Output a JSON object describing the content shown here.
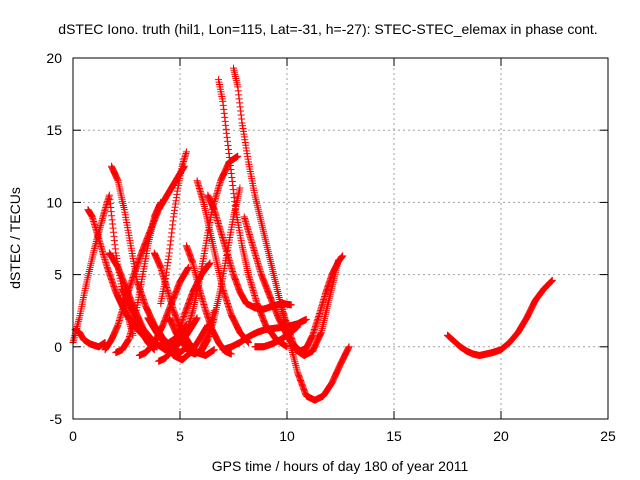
{
  "chart_data": {
    "type": "scatter",
    "title": "dSTEC Iono. truth (hil1, Lon=115, Lat=-31, h=-27): STEC-STEC_elemax in phase cont.",
    "xlabel": "GPS time / hours of day 180 of year 2011",
    "ylabel": "dSTEC  / TECUs",
    "xlim": [
      0,
      25
    ],
    "ylim": [
      -5,
      20
    ],
    "xticks": [
      0,
      5,
      10,
      15,
      20,
      25
    ],
    "yticks": [
      -5,
      0,
      5,
      10,
      15,
      20
    ],
    "grid": true,
    "marker": "+",
    "color": "#ff0000",
    "series": [
      {
        "x": [
          0.0,
          0.3,
          0.6,
          1.0,
          1.4,
          1.7,
          2.0,
          2.4,
          2.8
        ],
        "y": [
          0.3,
          2.0,
          4.2,
          6.8,
          9.0,
          10.5,
          6.5,
          3.0,
          0.8
        ]
      },
      {
        "x": [
          0.1,
          0.3,
          0.5,
          0.8,
          1.2,
          1.5
        ],
        "y": [
          1.2,
          1.0,
          0.5,
          0.2,
          0.0,
          0.3
        ]
      },
      {
        "x": [
          0.7,
          0.9,
          1.2,
          1.6,
          2.0,
          2.5,
          3.0,
          3.4,
          3.8,
          4.2,
          4.8,
          5.3
        ],
        "y": [
          9.5,
          9.0,
          7.5,
          5.5,
          3.8,
          2.2,
          1.2,
          0.6,
          0.2,
          0.0,
          0.6,
          1.5
        ]
      },
      {
        "x": [
          1.8,
          2.1,
          2.4,
          2.7,
          3.0,
          3.4,
          3.8,
          4.2,
          4.6,
          5.0,
          5.5
        ],
        "y": [
          12.5,
          11.5,
          9.5,
          7.0,
          4.5,
          2.8,
          1.5,
          0.6,
          0.0,
          -0.4,
          0.2
        ]
      },
      {
        "x": [
          1.5,
          1.8,
          2.1,
          2.4,
          2.8,
          3.2,
          3.6,
          4.0,
          4.4,
          4.8,
          5.2
        ],
        "y": [
          -0.2,
          0.5,
          1.5,
          3.0,
          4.8,
          6.5,
          8.0,
          9.5,
          10.5,
          11.5,
          12.5
        ]
      },
      {
        "x": [
          1.7,
          2.1,
          2.5,
          2.9,
          3.3,
          3.8,
          4.3,
          4.8,
          5.3,
          5.8
        ],
        "y": [
          6.5,
          5.5,
          4.0,
          2.5,
          1.2,
          0.3,
          -0.2,
          0.0,
          0.8,
          2.0
        ]
      },
      {
        "x": [
          2.0,
          2.3,
          2.6,
          2.9,
          3.2,
          3.5,
          3.8,
          4.1
        ],
        "y": [
          -0.4,
          -0.2,
          0.5,
          2.0,
          4.5,
          7.0,
          9.0,
          10.0
        ]
      },
      {
        "x": [
          2.3,
          2.6,
          2.9,
          3.2,
          3.5,
          3.8
        ],
        "y": [
          4.0,
          3.0,
          2.0,
          1.0,
          0.3,
          -0.2
        ]
      },
      {
        "x": [
          3.1,
          3.4,
          3.8,
          4.2,
          4.6,
          5.0,
          5.4
        ],
        "y": [
          -0.6,
          -0.4,
          0.3,
          1.5,
          3.0,
          4.5,
          5.5
        ]
      },
      {
        "x": [
          3.5,
          3.9,
          4.3,
          4.7,
          5.1,
          5.5,
          5.9,
          6.3
        ],
        "y": [
          2.0,
          1.0,
          0.2,
          -0.6,
          -0.9,
          -0.4,
          0.5,
          1.5
        ]
      },
      {
        "x": [
          3.8,
          4.1,
          4.4,
          4.7,
          5.0,
          5.4,
          5.8,
          6.2,
          6.6
        ],
        "y": [
          6.5,
          5.5,
          4.0,
          2.5,
          1.3,
          0.3,
          -0.4,
          -0.6,
          -0.2
        ]
      },
      {
        "x": [
          4.0,
          4.3,
          4.6,
          4.9,
          5.2,
          5.6,
          6.0,
          6.4
        ],
        "y": [
          -1.0,
          -0.8,
          -0.3,
          0.8,
          2.2,
          3.8,
          5.0,
          5.8
        ]
      },
      {
        "x": [
          4.1,
          4.3,
          4.5,
          4.7,
          4.9,
          5.1,
          5.3
        ],
        "y": [
          3.0,
          4.5,
          6.5,
          9.0,
          11.0,
          12.5,
          13.5
        ]
      },
      {
        "x": [
          4.5,
          4.8,
          5.1,
          5.4,
          5.7,
          6.0,
          6.3,
          6.6
        ],
        "y": [
          2.0,
          1.0,
          0.3,
          -0.3,
          -0.5,
          -0.2,
          0.8,
          2.5
        ]
      },
      {
        "x": [
          5.0,
          5.3,
          5.6,
          5.9,
          6.2,
          6.5,
          6.9,
          7.3,
          7.7
        ],
        "y": [
          0.3,
          1.0,
          2.5,
          4.5,
          7.0,
          9.5,
          11.5,
          12.8,
          13.2
        ]
      },
      {
        "x": [
          5.3,
          5.6,
          5.9,
          6.2,
          6.5,
          6.8,
          7.1,
          7.4
        ],
        "y": [
          7.0,
          5.8,
          4.0,
          2.5,
          1.2,
          0.3,
          -0.3,
          -0.5
        ]
      },
      {
        "x": [
          5.8,
          6.1,
          6.4,
          6.7,
          7.0,
          7.4,
          7.8,
          8.2
        ],
        "y": [
          11.5,
          10.0,
          8.0,
          6.0,
          4.0,
          2.2,
          1.0,
          0.3
        ]
      },
      {
        "x": [
          6.0,
          6.3,
          6.6,
          6.9,
          7.2,
          7.5,
          7.8
        ],
        "y": [
          -0.3,
          0.5,
          2.0,
          4.0,
          6.5,
          9.0,
          11.0
        ]
      },
      {
        "x": [
          6.3,
          6.6,
          6.9,
          7.2,
          7.5,
          7.8,
          8.1,
          8.5,
          8.9,
          9.3,
          9.8,
          10.2
        ],
        "y": [
          10.5,
          9.5,
          8.0,
          6.5,
          5.0,
          3.8,
          3.0,
          2.7,
          2.6,
          2.8,
          3.0,
          2.9
        ]
      },
      {
        "x": [
          6.8,
          7.0,
          7.2,
          7.4,
          7.6,
          7.9,
          8.2,
          8.6,
          9.0,
          9.5,
          10.0
        ],
        "y": [
          18.5,
          17.0,
          14.5,
          12.0,
          9.5,
          7.0,
          5.0,
          3.0,
          1.5,
          0.5,
          0.0
        ]
      },
      {
        "x": [
          7.0,
          7.4,
          7.8,
          8.2,
          8.6,
          9.0,
          9.5,
          10.0,
          10.5,
          10.9
        ],
        "y": [
          -0.2,
          0.0,
          0.3,
          0.7,
          1.0,
          1.2,
          1.3,
          1.4,
          1.6,
          1.9
        ]
      },
      {
        "x": [
          7.5,
          7.7,
          7.9,
          8.2,
          8.5,
          8.9,
          9.3,
          9.7,
          10.1,
          10.5,
          10.9,
          11.3,
          11.7,
          12.1,
          12.5,
          12.9
        ],
        "y": [
          19.3,
          18.0,
          15.5,
          12.8,
          10.5,
          8.0,
          5.5,
          3.0,
          0.5,
          -1.8,
          -3.4,
          -3.7,
          -3.4,
          -2.5,
          -1.2,
          0.0
        ]
      },
      {
        "x": [
          8.0,
          8.4,
          8.8,
          9.2,
          9.6,
          10.0,
          10.4,
          10.8,
          11.2,
          11.6,
          12.0,
          12.4
        ],
        "y": [
          9.0,
          7.0,
          5.0,
          3.5,
          2.0,
          0.8,
          -0.2,
          -0.6,
          -0.3,
          1.0,
          3.5,
          6.0
        ]
      },
      {
        "x": [
          8.5,
          8.9,
          9.3,
          9.7,
          10.1,
          10.5
        ],
        "y": [
          0.0,
          0.0,
          0.2,
          0.5,
          0.9,
          1.4
        ]
      },
      {
        "x": [
          9.7,
          10.0,
          10.3,
          10.6,
          10.9,
          11.2,
          11.5,
          11.8,
          12.1,
          12.4,
          12.6
        ],
        "y": [
          3.0,
          1.5,
          0.2,
          -0.3,
          -0.1,
          0.8,
          2.2,
          3.7,
          5.0,
          5.9,
          6.3
        ]
      },
      {
        "x": [
          17.5,
          17.8,
          18.1,
          18.4,
          18.7,
          19.0,
          19.3,
          19.6,
          20.0,
          20.4,
          20.8,
          21.2,
          21.6,
          22.0,
          22.4
        ],
        "y": [
          0.8,
          0.4,
          0.0,
          -0.3,
          -0.5,
          -0.6,
          -0.5,
          -0.4,
          -0.2,
          0.3,
          1.0,
          2.0,
          3.2,
          4.0,
          4.6
        ]
      }
    ]
  }
}
